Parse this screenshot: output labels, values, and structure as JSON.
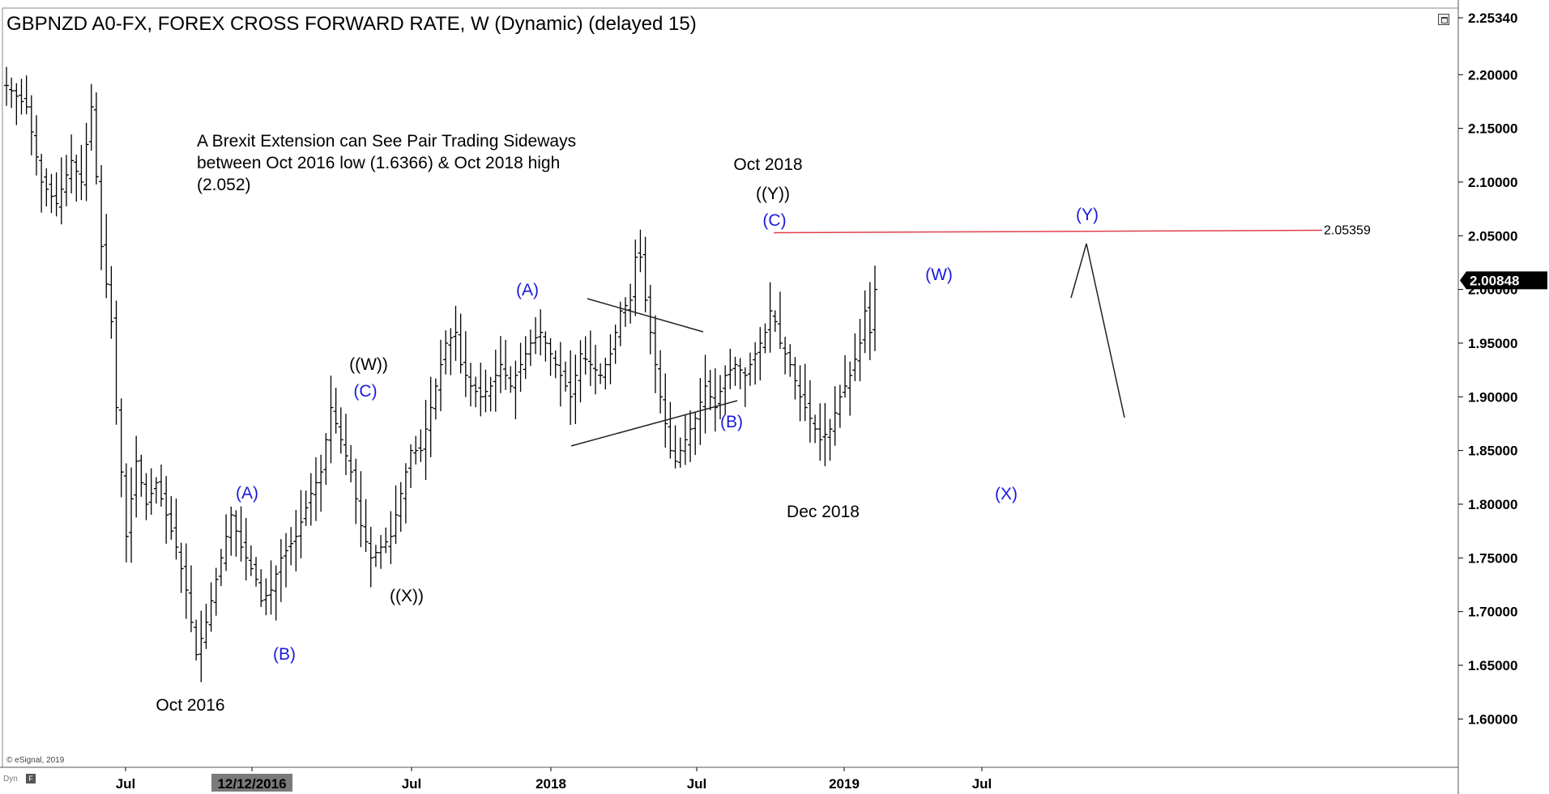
{
  "window": {
    "title": "GBPNZD A0-FX, FOREX CROSS FORWARD RATE, W (Dynamic) (delayed 15)",
    "copyright": "© eSignal, 2019",
    "dyn_label": "Dyn",
    "dyn_icon": "F"
  },
  "colors": {
    "background": "#ffffff",
    "bars": "#000000",
    "wave_label_blue": "#1a1adc",
    "resistance_line": "#e0404a",
    "price_badge_bg": "#000000",
    "price_badge_fg": "#ffffff"
  },
  "chart_data": {
    "type": "ohlc",
    "title": "GBPNZD A0-FX, FOREX CROSS FORWARD RATE, W (Dynamic) (delayed 15)",
    "y_axis": {
      "ticks": [
        "2.20000",
        "2.15000",
        "2.10000",
        "2.05000",
        "2.00000",
        "1.95000",
        "1.90000",
        "1.85000",
        "1.80000",
        "1.75000",
        "1.70000",
        "1.65000",
        "1.60000"
      ],
      "top_label": "2.25340",
      "last_price_label": "2.00848",
      "last_price": 2.00848,
      "range": [
        1.555,
        2.262
      ]
    },
    "x_axis": {
      "ticks": [
        {
          "label": "Jul",
          "t": 0.0
        },
        {
          "label": "12/12/2016",
          "t": 0.0,
          "highlight": true
        },
        {
          "label": "Jul",
          "t": 0.0
        },
        {
          "label": "2018",
          "t": 0.0
        },
        {
          "label": "Jul",
          "t": 0.0
        },
        {
          "label": "2019",
          "t": 0.0
        },
        {
          "label": "Jul",
          "t": 0.0
        }
      ]
    },
    "weekly_anchors": [
      [
        0,
        2.19
      ],
      [
        4,
        2.17
      ],
      [
        7,
        2.1
      ],
      [
        10,
        2.08
      ],
      [
        13,
        2.12
      ],
      [
        15,
        2.1
      ],
      [
        17,
        2.17
      ],
      [
        19,
        2.04
      ],
      [
        21,
        1.97
      ],
      [
        22,
        1.89
      ],
      [
        24,
        1.77
      ],
      [
        26,
        1.84
      ],
      [
        28,
        1.8
      ],
      [
        30,
        1.82
      ],
      [
        34,
        1.76
      ],
      [
        36,
        1.72
      ],
      [
        38,
        1.66
      ],
      [
        40,
        1.69
      ],
      [
        42,
        1.73
      ],
      [
        45,
        1.79
      ],
      [
        47,
        1.76
      ],
      [
        50,
        1.73
      ],
      [
        51,
        1.71
      ],
      [
        53,
        1.72
      ],
      [
        55,
        1.75
      ],
      [
        58,
        1.77
      ],
      [
        61,
        1.81
      ],
      [
        63,
        1.83
      ],
      [
        65,
        1.89
      ],
      [
        67,
        1.86
      ],
      [
        69,
        1.83
      ],
      [
        71,
        1.78
      ],
      [
        73,
        1.75
      ],
      [
        75,
        1.76
      ],
      [
        77,
        1.77
      ],
      [
        79,
        1.81
      ],
      [
        81,
        1.85
      ],
      [
        83,
        1.85
      ],
      [
        85,
        1.89
      ],
      [
        87,
        1.93
      ],
      [
        88,
        1.95
      ],
      [
        90,
        1.96
      ],
      [
        91,
        1.93
      ],
      [
        93,
        1.91
      ],
      [
        95,
        1.9
      ],
      [
        97,
        1.91
      ],
      [
        99,
        1.93
      ],
      [
        101,
        1.91
      ],
      [
        103,
        1.93
      ],
      [
        105,
        1.95
      ],
      [
        107,
        1.96
      ],
      [
        109,
        1.94
      ],
      [
        111,
        1.92
      ],
      [
        113,
        1.9
      ],
      [
        115,
        1.94
      ],
      [
        117,
        1.93
      ],
      [
        119,
        1.92
      ],
      [
        121,
        1.94
      ],
      [
        123,
        1.98
      ],
      [
        125,
        1.99
      ],
      [
        126,
        2.03
      ],
      [
        127,
        2.03
      ],
      [
        128,
        1.99
      ],
      [
        129,
        1.96
      ],
      [
        130,
        1.93
      ],
      [
        131,
        1.9
      ],
      [
        133,
        1.85
      ],
      [
        134,
        1.84
      ],
      [
        136,
        1.86
      ],
      [
        138,
        1.88
      ],
      [
        140,
        1.91
      ],
      [
        142,
        1.89
      ],
      [
        144,
        1.92
      ],
      [
        146,
        1.93
      ],
      [
        148,
        1.92
      ],
      [
        150,
        1.94
      ],
      [
        152,
        1.96
      ],
      [
        153,
        1.98
      ],
      [
        154,
        1.97
      ],
      [
        155,
        1.95
      ],
      [
        157,
        1.93
      ],
      [
        159,
        1.9
      ],
      [
        161,
        1.88
      ],
      [
        163,
        1.86
      ],
      [
        165,
        1.87
      ],
      [
        167,
        1.9
      ],
      [
        169,
        1.92
      ],
      [
        171,
        1.95
      ],
      [
        172,
        1.98
      ],
      [
        173,
        1.96
      ],
      [
        174,
        2.0
      ]
    ],
    "annotations": {
      "note": "A Brexit Extension can See Pair Trading Sideways\nbetween Oct 2016 low (1.6366) & Oct 2018 high\n(2.052)",
      "black_labels": [
        {
          "text": "Oct 2016",
          "key": "oct2016"
        },
        {
          "text": "((W))",
          "key": "w2"
        },
        {
          "text": "((X))",
          "key": "x2"
        },
        {
          "text": "Oct 2018",
          "key": "oct2018"
        },
        {
          "text": "((Y))",
          "key": "y2"
        },
        {
          "text": "Dec 2018",
          "key": "dec2018"
        }
      ],
      "blue_labels": [
        {
          "text": "(A)",
          "key": "a1"
        },
        {
          "text": "(B)",
          "key": "b1"
        },
        {
          "text": "(C)",
          "key": "c1"
        },
        {
          "text": "(A)",
          "key": "a2"
        },
        {
          "text": "(B)",
          "key": "b2"
        },
        {
          "text": "(C)",
          "key": "c2"
        },
        {
          "text": "(W)",
          "key": "w"
        },
        {
          "text": "(X)",
          "key": "x"
        },
        {
          "text": "(Y)",
          "key": "y"
        }
      ],
      "resistance_level": 2.05359,
      "resistance_label": "2.05359"
    }
  }
}
